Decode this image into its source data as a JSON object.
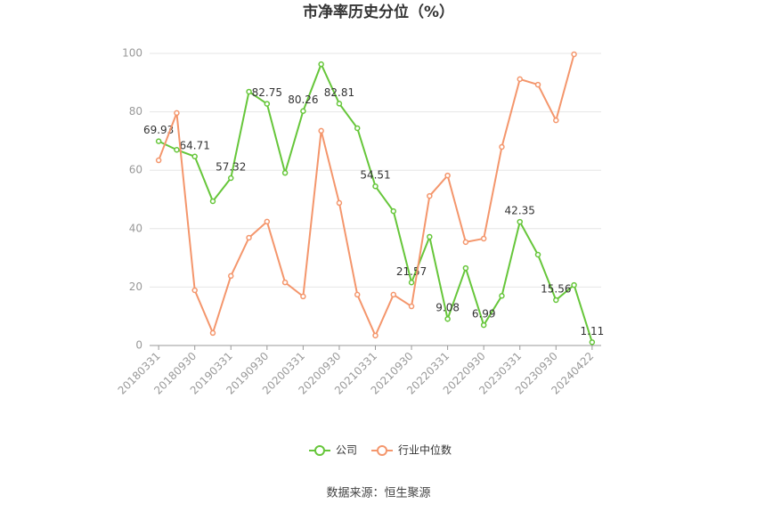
{
  "chart_data": {
    "type": "line",
    "title": "市净率历史分位（%）",
    "categories": [
      "20180331",
      null,
      "20180930",
      null,
      "20190331",
      null,
      "20190930",
      null,
      "20200331",
      null,
      "20200930",
      null,
      "20210331",
      null,
      "20210930",
      null,
      "20220331",
      null,
      "20220930",
      null,
      "20230331",
      null,
      "20230930",
      null,
      "20240422"
    ],
    "series": [
      {
        "name": "公司",
        "color": "#66c63a",
        "values": [
          69.93,
          67,
          64.71,
          49.4,
          57.32,
          86.9,
          82.75,
          59.1,
          80.26,
          96.3,
          82.81,
          74.4,
          54.51,
          46,
          21.57,
          37.2,
          9.08,
          26.5,
          6.99,
          17,
          42.35,
          31.1,
          15.56,
          20.7,
          1.11
        ],
        "value_labels": [
          "69.93",
          null,
          "64.71",
          null,
          "57.32",
          null,
          "82.75",
          null,
          "80.26",
          null,
          "82.81",
          null,
          "54.51",
          null,
          "21.57",
          null,
          "9.08",
          null,
          "6.99",
          null,
          "42.35",
          null,
          "15.56",
          null,
          "1.11"
        ]
      },
      {
        "name": "行业中位数",
        "color": "#f4966c",
        "values": [
          63.4,
          79.6,
          18.9,
          4.3,
          23.8,
          36.9,
          42.4,
          21.6,
          16.8,
          73.5,
          48.8,
          17.4,
          3.4,
          17.4,
          13.4,
          51.2,
          58.2,
          35.4,
          36.6,
          68,
          91.2,
          89.3,
          77.1,
          99.7,
          null
        ]
      }
    ],
    "ylim": [
      0,
      100
    ],
    "yticks": [
      0,
      20,
      40,
      60,
      80,
      100
    ],
    "grid": true,
    "source": "数据来源：恒生聚源"
  }
}
